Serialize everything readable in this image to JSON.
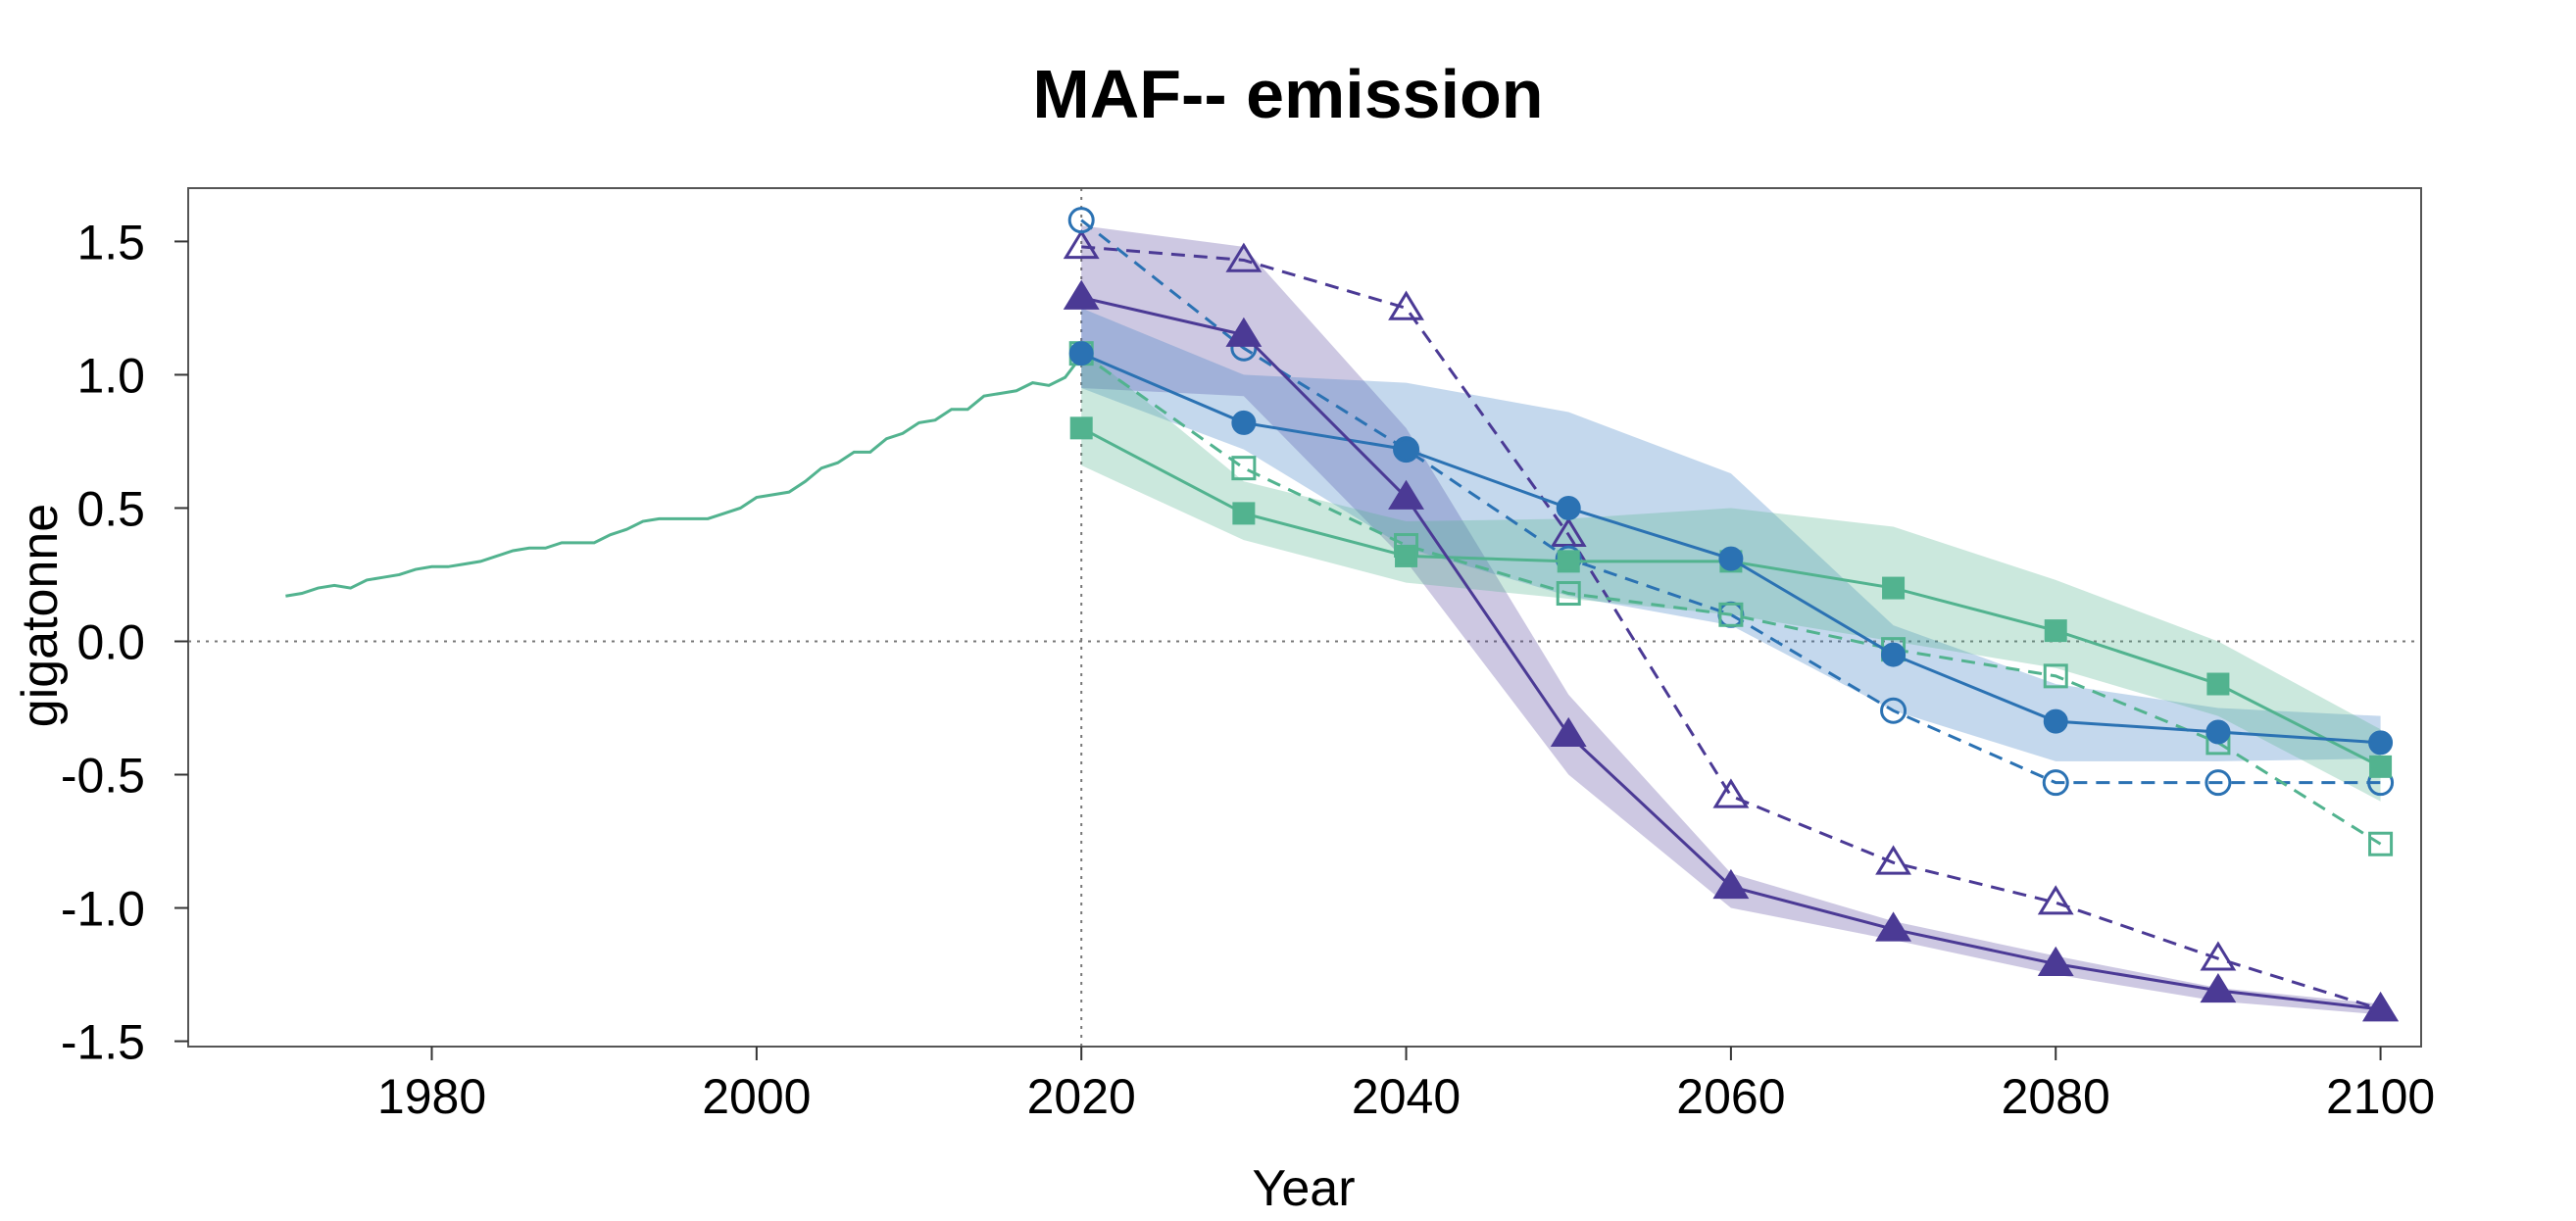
{
  "chart_data": {
    "type": "line",
    "title": "MAF-- emission",
    "xlabel": "Year",
    "ylabel": "gigatonne",
    "xlim": [
      1965,
      2102.5
    ],
    "ylim": [
      -1.52,
      1.7
    ],
    "xticks": [
      1980,
      2000,
      2020,
      2040,
      2060,
      2080,
      2100
    ],
    "xtick_labels": [
      "1980",
      "2000",
      "2020",
      "2040",
      "2060",
      "2080",
      "2100"
    ],
    "yticks": [
      1.5,
      1.0,
      0.5,
      0.0,
      -0.5,
      -1.0,
      -1.5
    ],
    "ytick_labels": [
      "1.5",
      "1.0",
      "0.5",
      "0.0",
      "-0.5",
      "-1.0",
      "-1.5"
    ],
    "reference_lines": {
      "x": 2020,
      "y": 0.0
    },
    "history": {
      "name": "historical",
      "color": "#52b38f",
      "x": [
        1971,
        1972,
        1973,
        1974,
        1975,
        1976,
        1977,
        1978,
        1979,
        1980,
        1981,
        1982,
        1983,
        1984,
        1985,
        1986,
        1987,
        1988,
        1989,
        1990,
        1991,
        1992,
        1993,
        1994,
        1995,
        1996,
        1997,
        1998,
        1999,
        2000,
        2001,
        2002,
        2003,
        2004,
        2005,
        2006,
        2007,
        2008,
        2009,
        2010,
        2011,
        2012,
        2013,
        2014,
        2015,
        2016,
        2017,
        2018,
        2019,
        2020
      ],
      "values": [
        0.17,
        0.18,
        0.2,
        0.21,
        0.2,
        0.23,
        0.24,
        0.25,
        0.27,
        0.28,
        0.28,
        0.29,
        0.3,
        0.32,
        0.34,
        0.35,
        0.35,
        0.37,
        0.37,
        0.37,
        0.4,
        0.42,
        0.45,
        0.46,
        0.46,
        0.46,
        0.46,
        0.48,
        0.5,
        0.54,
        0.55,
        0.56,
        0.6,
        0.65,
        0.67,
        0.71,
        0.71,
        0.76,
        0.78,
        0.82,
        0.83,
        0.87,
        0.87,
        0.92,
        0.93,
        0.94,
        0.97,
        0.96,
        0.99,
        1.07
      ]
    },
    "x": [
      2020,
      2030,
      2040,
      2050,
      2060,
      2070,
      2080,
      2090,
      2100
    ],
    "bands": [
      {
        "name": "purple-band",
        "color": "#5b4aa0",
        "x": [
          2020,
          2030,
          2040,
          2050,
          2060,
          2070,
          2080,
          2090,
          2100
        ],
        "upper": [
          1.56,
          1.48,
          0.8,
          -0.2,
          -0.87,
          -1.05,
          -1.18,
          -1.3,
          -1.36
        ],
        "lower": [
          0.95,
          0.92,
          0.3,
          -0.5,
          -1.0,
          -1.12,
          -1.25,
          -1.35,
          -1.4
        ]
      },
      {
        "name": "blue-band",
        "color": "#3b7fc4",
        "x": [
          2020,
          2030,
          2040,
          2050,
          2060,
          2070,
          2080,
          2090,
          2100
        ],
        "upper": [
          1.25,
          1.0,
          0.97,
          0.86,
          0.63,
          0.06,
          -0.16,
          -0.25,
          -0.28
        ],
        "lower": [
          0.95,
          0.72,
          0.35,
          0.17,
          0.06,
          -0.26,
          -0.45,
          -0.45,
          -0.44
        ]
      },
      {
        "name": "green-band",
        "color": "#52b38f",
        "x": [
          2020,
          2030,
          2040,
          2050,
          2060,
          2070,
          2080,
          2090,
          2100
        ],
        "upper": [
          1.1,
          0.6,
          0.45,
          0.46,
          0.5,
          0.43,
          0.23,
          0.0,
          -0.33
        ],
        "lower": [
          0.66,
          0.38,
          0.22,
          0.16,
          0.1,
          0.0,
          -0.1,
          -0.28,
          -0.6
        ]
      }
    ],
    "series": [
      {
        "name": "purple-dashed-open-triangle",
        "color": "#4b3a95",
        "dashed": true,
        "marker": "triangle",
        "filled": false,
        "values": [
          1.48,
          1.43,
          1.25,
          0.4,
          -0.58,
          -0.83,
          -0.98,
          -1.19,
          -1.38
        ]
      },
      {
        "name": "blue-dashed-open-circle",
        "color": "#2b72b3",
        "dashed": true,
        "marker": "circle",
        "filled": false,
        "values": [
          1.58,
          1.1,
          0.72,
          0.31,
          0.1,
          -0.26,
          -0.53,
          -0.53,
          -0.53
        ]
      },
      {
        "name": "green-dashed-open-square",
        "color": "#52b38f",
        "dashed": true,
        "marker": "square",
        "filled": false,
        "values": [
          1.08,
          0.65,
          0.36,
          0.18,
          0.1,
          -0.03,
          -0.13,
          -0.38,
          -0.76
        ]
      },
      {
        "name": "green-solid-filled-square",
        "color": "#52b38f",
        "dashed": false,
        "marker": "square",
        "filled": true,
        "values": [
          0.8,
          0.48,
          0.32,
          0.3,
          0.3,
          0.2,
          0.04,
          -0.16,
          -0.47
        ]
      },
      {
        "name": "blue-solid-filled-circle",
        "color": "#2b72b3",
        "dashed": false,
        "marker": "circle",
        "filled": true,
        "values": [
          1.08,
          0.82,
          0.72,
          0.5,
          0.31,
          -0.05,
          -0.3,
          -0.34,
          -0.38
        ]
      },
      {
        "name": "purple-solid-filled-triangle",
        "color": "#4b3a95",
        "dashed": false,
        "marker": "triangle",
        "filled": true,
        "values": [
          1.29,
          1.15,
          0.54,
          -0.35,
          -0.92,
          -1.08,
          -1.21,
          -1.31,
          -1.38
        ]
      }
    ]
  }
}
